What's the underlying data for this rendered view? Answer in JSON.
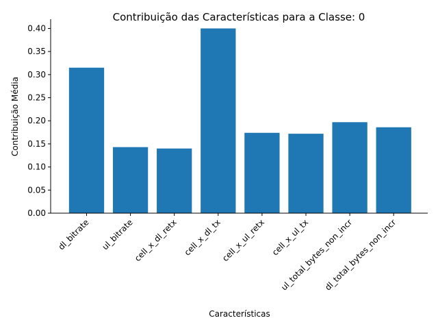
{
  "chart_data": {
    "type": "bar",
    "title": "Contribuição das Características para a Classe: 0",
    "xlabel": "Características",
    "ylabel": "Contribuição Média",
    "categories": [
      "dl_bitrate",
      "ul_bitrate",
      "cell_x_dl_retx",
      "cell_x_dl_tx",
      "cell_x_ul_retx",
      "cell_x_ul_tx",
      "ul_total_bytes_non_incr",
      "dl_total_bytes_non_incr"
    ],
    "values": [
      0.315,
      0.143,
      0.14,
      0.4,
      0.174,
      0.172,
      0.197,
      0.186
    ],
    "ylim": [
      0,
      0.42
    ],
    "yticks": [
      "0.00",
      "0.05",
      "0.10",
      "0.15",
      "0.20",
      "0.25",
      "0.30",
      "0.35",
      "0.40"
    ],
    "color": "#1f77b4",
    "grid": false
  }
}
